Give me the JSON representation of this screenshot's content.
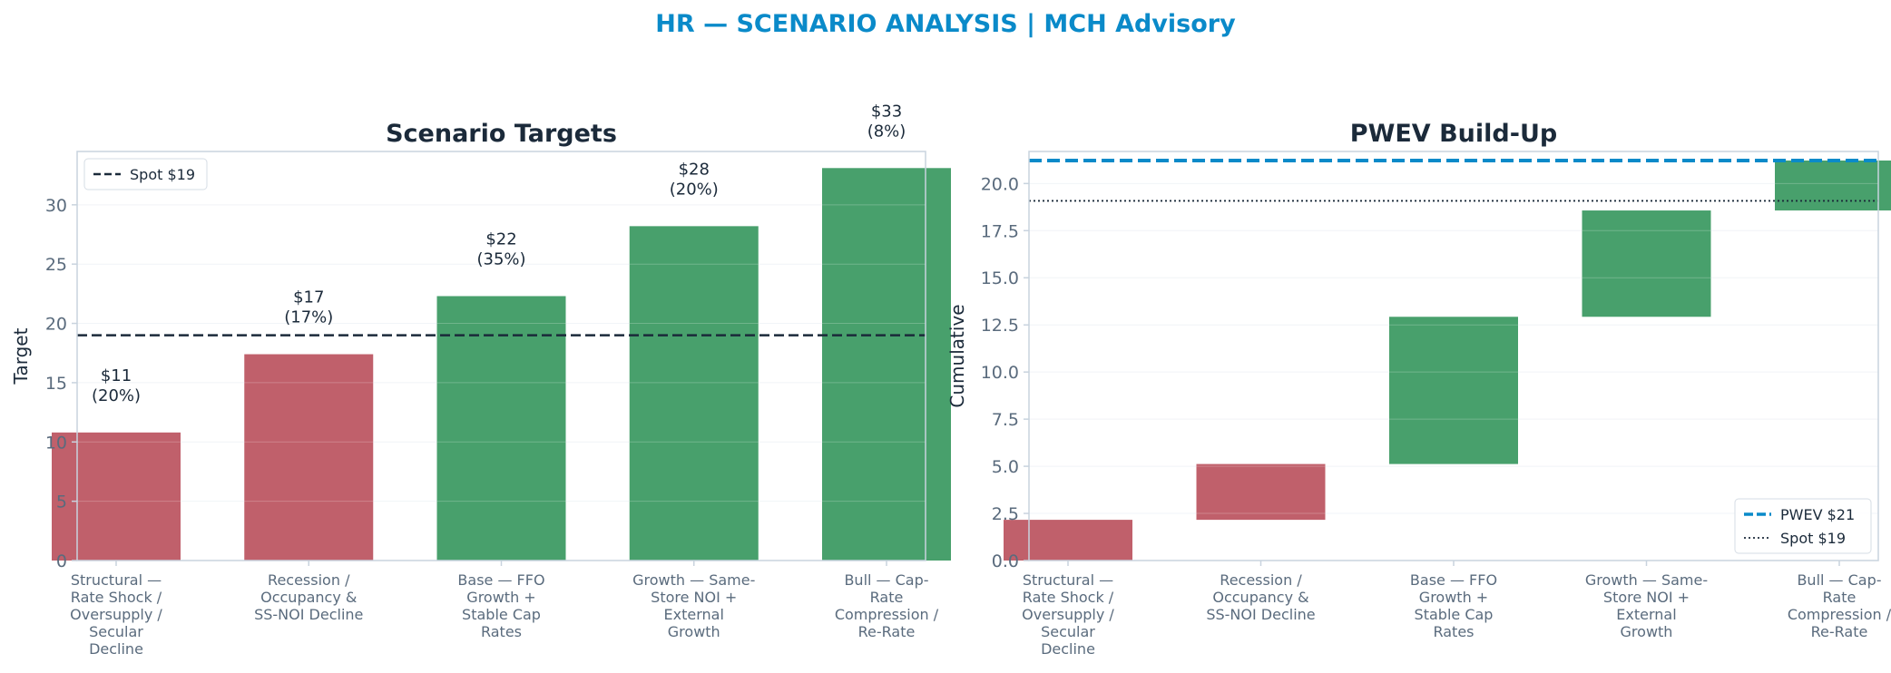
{
  "figure": {
    "title": "HR — SCENARIO ANALYSIS | MCH Advisory",
    "colors": {
      "title": "#0a8ac9",
      "negative": "#c0606b",
      "positive": "#48a06c",
      "spot_line": "#1b2a3a",
      "pwev_line": "#0a8ac9",
      "axis": "#c8d3de",
      "text": "#1b2a3a",
      "tick_text": "#5a6b7d"
    }
  },
  "chart_data": [
    {
      "type": "bar",
      "title": "Scenario Targets",
      "xlabel": "",
      "ylabel": "Target",
      "ylim": [
        0,
        34.5
      ],
      "yticks": [
        0,
        5,
        10,
        15,
        20,
        25,
        30
      ],
      "ytick_labels": [
        "0",
        "5",
        "10",
        "15",
        "20",
        "25",
        "30"
      ],
      "grid": "horizontal",
      "categories": [
        [
          "Structural —",
          "Rate Shock /",
          "Oversupply /",
          "Secular",
          "Decline"
        ],
        [
          "Recession /",
          "Occupancy &",
          "SS-NOI Decline"
        ],
        [
          "Base — FFO",
          "Growth +",
          "Stable Cap",
          "Rates"
        ],
        [
          "Growth — Same-",
          "Store NOI +",
          "External",
          "Growth"
        ],
        [
          "Bull — Cap-",
          "Rate",
          "Compression /",
          "Re-Rate"
        ]
      ],
      "values": [
        10.8,
        17.4,
        22.3,
        28.2,
        33.1
      ],
      "bar_colors": [
        "#c0606b",
        "#c0606b",
        "#48a06c",
        "#48a06c",
        "#48a06c"
      ],
      "data_labels": [
        [
          "$11",
          "(20%)"
        ],
        [
          "$17",
          "(17%)"
        ],
        [
          "$22",
          "(35%)"
        ],
        [
          "$28",
          "(20%)"
        ],
        [
          "$33",
          "(8%)"
        ]
      ],
      "reference_lines": [
        {
          "name": "Spot $19",
          "value": 19,
          "style": "dashed",
          "color": "#1b2a3a"
        }
      ],
      "legend": {
        "position": "upper-left",
        "entries": [
          "Spot $19"
        ]
      }
    },
    {
      "type": "waterfall",
      "title": "PWEV Build-Up",
      "xlabel": "",
      "ylabel": "Cumulative",
      "ylim": [
        0,
        21.7
      ],
      "yticks": [
        0,
        2.5,
        5,
        7.5,
        10,
        12.5,
        15,
        17.5,
        20
      ],
      "ytick_labels": [
        "0.0",
        "2.5",
        "5.0",
        "7.5",
        "10.0",
        "12.5",
        "15.0",
        "17.5",
        "20.0"
      ],
      "grid": "horizontal",
      "categories": [
        [
          "Structural —",
          "Rate Shock /",
          "Oversupply /",
          "Secular",
          "Decline"
        ],
        [
          "Recession /",
          "Occupancy &",
          "SS-NOI Decline"
        ],
        [
          "Base — FFO",
          "Growth +",
          "Stable Cap",
          "Rates"
        ],
        [
          "Growth — Same-",
          "Store NOI +",
          "External",
          "Growth"
        ],
        [
          "Bull — Cap-",
          "Rate",
          "Compression /",
          "Re-Rate"
        ]
      ],
      "steps": [
        {
          "start": 0,
          "end": 2.16
        },
        {
          "start": 2.16,
          "end": 5.12
        },
        {
          "start": 5.12,
          "end": 12.93
        },
        {
          "start": 12.93,
          "end": 18.57
        },
        {
          "start": 18.57,
          "end": 21.22
        }
      ],
      "bar_colors": [
        "#c0606b",
        "#c0606b",
        "#48a06c",
        "#48a06c",
        "#48a06c"
      ],
      "reference_lines": [
        {
          "name": "PWEV $21",
          "value": 21.22,
          "style": "dashed",
          "color": "#0a8ac9"
        },
        {
          "name": "Spot $19",
          "value": 19.08,
          "style": "dotted",
          "color": "#1b2a3a"
        }
      ],
      "legend": {
        "position": "lower-right",
        "entries": [
          "PWEV $21",
          "Spot $19"
        ]
      }
    }
  ]
}
